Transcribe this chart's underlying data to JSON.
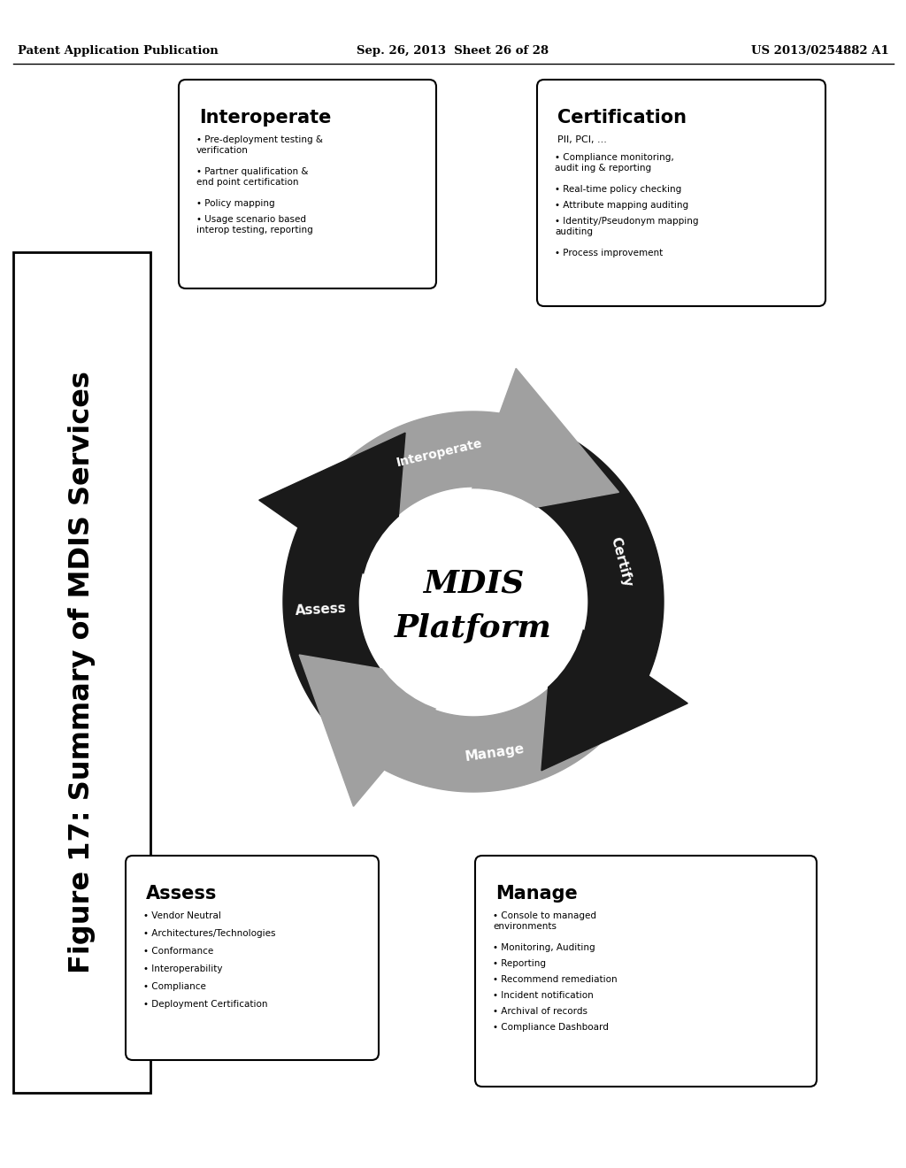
{
  "header_left": "Patent Application Publication",
  "header_middle": "Sep. 26, 2013  Sheet 26 of 28",
  "header_right": "US 2013/0254882 A1",
  "figure_title": "Figure 17: Summary of MDIS Services",
  "center_text_line1": "MDIS",
  "center_text_line2": "Platform",
  "box_top_left_title": "Interoperate",
  "box_top_left_items": [
    "Pre-deployment testing &\nverification",
    "Partner qualification &\nend point certification",
    "Policy mapping",
    "Usage scenario based\ninterop testing, reporting"
  ],
  "box_top_right_title": "Certification",
  "box_top_right_subtitle": "PII, PCI, ...",
  "box_top_right_items": [
    "Compliance monitoring,\naudit ing & reporting",
    "Real-time policy checking",
    "Attribute mapping auditing",
    "Identity/Pseudonym mapping\nauditing",
    "Process improvement"
  ],
  "box_bottom_left_title": "Assess",
  "box_bottom_left_items": [
    "Vendor Neutral",
    "Architectures/Technologies",
    "Conformance",
    "Interoperability",
    "Compliance",
    "Deployment Certification"
  ],
  "box_bottom_right_title": "Manage",
  "box_bottom_right_items": [
    "Console to managed\nenvironments",
    "Monitoring, Auditing",
    "Reporting",
    "Recommend remediation",
    "Incident notification",
    "Archival of records",
    "Compliance Dashboard"
  ],
  "bg_color": "#ffffff",
  "dark_color": "#1a1a1a",
  "light_color": "#a0a0a0"
}
